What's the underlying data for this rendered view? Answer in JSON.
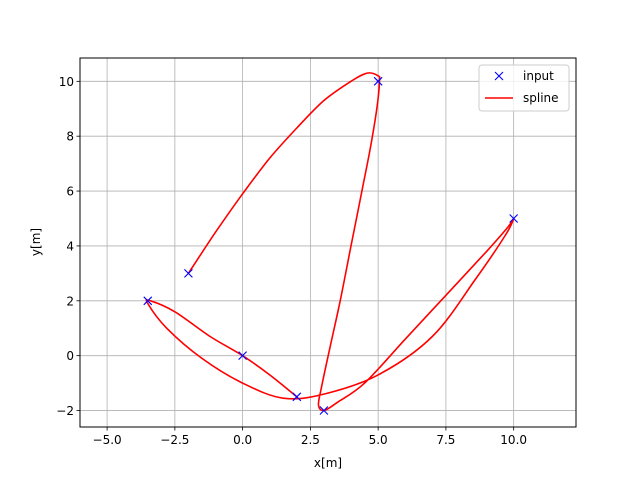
{
  "chart_data": {
    "type": "line",
    "title": "",
    "xlabel": "x[m]",
    "ylabel": "y[m]",
    "xlim": [
      -6.0,
      12.3
    ],
    "ylim": [
      -2.6,
      10.85
    ],
    "xticks": [
      -5.0,
      -2.5,
      0.0,
      2.5,
      5.0,
      7.5,
      10.0
    ],
    "xtick_labels": [
      "−5.0",
      "−2.5",
      "0.0",
      "2.5",
      "5.0",
      "7.5",
      "10.0"
    ],
    "yticks": [
      -2,
      0,
      2,
      4,
      6,
      8,
      10
    ],
    "ytick_labels": [
      "−2",
      "0",
      "2",
      "4",
      "6",
      "8",
      "10"
    ],
    "grid": true,
    "legend_position": "top-right",
    "series": [
      {
        "name": "input",
        "style": "markers",
        "marker": "x",
        "color": "#0000ff",
        "x": [
          -2.0,
          5.0,
          3.0,
          10.0,
          -3.5,
          0.0,
          2.0
        ],
        "y": [
          3.0,
          10.0,
          -2.0,
          5.0,
          2.0,
          0.0,
          -1.5
        ]
      },
      {
        "name": "spline",
        "style": "line",
        "color": "#ff0000",
        "x": [
          -2.0,
          -1.0,
          0.0,
          1.0,
          2.0,
          3.0,
          4.0,
          4.6,
          5.0,
          5.05,
          4.95,
          4.7,
          4.4,
          4.0,
          3.6,
          3.2,
          2.9,
          2.8,
          3.0,
          3.5,
          4.5,
          6.0,
          7.5,
          9.0,
          9.8,
          10.0,
          9.7,
          8.6,
          7.0,
          5.0,
          3.0,
          1.5,
          0.0,
          -1.5,
          -2.8,
          -3.5,
          -3.4,
          -2.5,
          -1.2,
          0.0,
          1.0,
          2.0
        ],
        "y": [
          3.0,
          4.5,
          5.9,
          7.2,
          8.3,
          9.3,
          10.0,
          10.3,
          10.2,
          10.0,
          9.0,
          7.5,
          6.0,
          4.0,
          2.0,
          0.2,
          -1.2,
          -1.8,
          -2.0,
          -1.7,
          -1.0,
          0.6,
          2.2,
          3.8,
          4.7,
          5.0,
          4.4,
          2.8,
          0.7,
          -0.7,
          -1.4,
          -1.55,
          -1.0,
          -0.1,
          1.0,
          1.9,
          2.0,
          1.6,
          0.7,
          0.0,
          -0.7,
          -1.5
        ]
      }
    ]
  }
}
